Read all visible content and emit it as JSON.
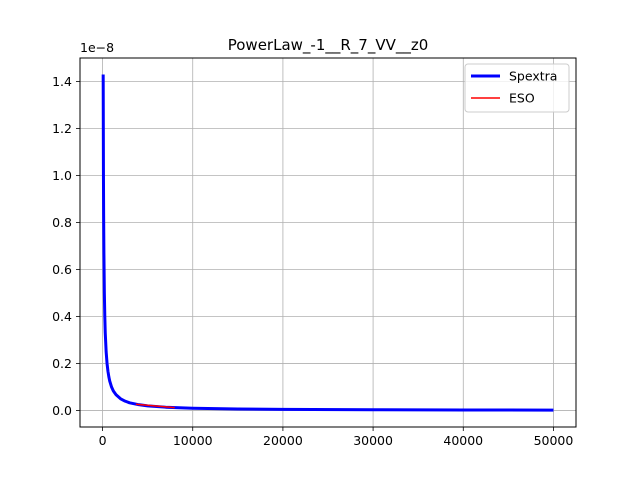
{
  "chart_data": {
    "type": "line",
    "title": "PowerLaw_-1__R_7_VV__z0",
    "xlabel": "",
    "ylabel": "",
    "y_offset_label": "1e−8",
    "y_scale_factor": 1e-08,
    "xlim": [
      -2500,
      52500
    ],
    "ylim": [
      -7e-10,
      1.5e-08
    ],
    "xticks": [
      0,
      10000,
      20000,
      30000,
      40000,
      50000
    ],
    "xtick_labels": [
      "0",
      "10000",
      "20000",
      "30000",
      "40000",
      "50000"
    ],
    "yticks": [
      0,
      2e-09,
      4e-09,
      6e-09,
      8e-09,
      1e-08,
      1.2e-08,
      1.4e-08
    ],
    "ytick_labels": [
      "0.0",
      "0.2",
      "0.4",
      "0.6",
      "0.8",
      "1.0",
      "1.2",
      "1.4"
    ],
    "grid": true,
    "legend_position": "top-right",
    "series": [
      {
        "name": "Spextra",
        "color": "#0000ff",
        "x": [
          70,
          100,
          120,
          150,
          200,
          250,
          300,
          400,
          500,
          600,
          700,
          800,
          1000,
          1200,
          1500,
          2000,
          2500,
          3000,
          4000,
          5000,
          7000,
          10000,
          15000,
          20000,
          30000,
          40000,
          50000
        ],
        "y": [
          1.43e-08,
          1e-08,
          8.3e-09,
          6.7e-09,
          5e-09,
          4e-09,
          3.3e-09,
          2.5e-09,
          2e-09,
          1.67e-09,
          1.43e-09,
          1.25e-09,
          1e-09,
          8.3e-10,
          6.7e-10,
          5e-10,
          4e-10,
          3.3e-10,
          2.5e-10,
          2e-10,
          1.43e-10,
          1e-10,
          6.7e-11,
          5e-11,
          3.3e-11,
          2.5e-11,
          2e-11
        ]
      },
      {
        "name": "ESO",
        "color": "#ff0000",
        "x": [
          3700,
          8000
        ],
        "y": [
          2.7e-10,
          1.25e-10
        ]
      }
    ]
  }
}
